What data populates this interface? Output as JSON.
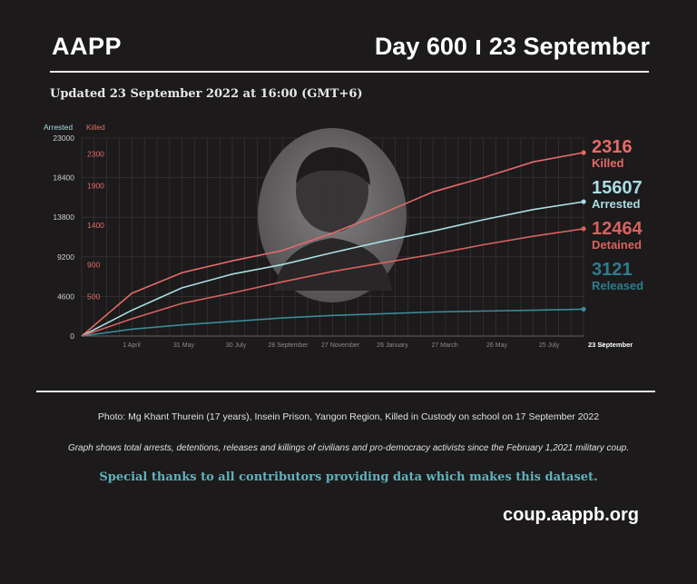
{
  "header": {
    "org": "AAPP",
    "day": "Day 600",
    "date": "23 September"
  },
  "updated": "Updated 23 September 2022 at 16:00 (GMT+6)",
  "photo_caption": "Photo: Mg Khant Thurein (17 years), Insein Prison, Yangon Region, Killed in Custody on school on 17 September 2022",
  "note": "Graph shows total arrests, detentions, releases and killings of civilians and pro-democracy activists since the February 1,2021 military coup.",
  "thanks": "Special thanks to all contributors providing data which makes this dataset.",
  "website": "coup.aappb.org",
  "colors": {
    "killed": "#e56b67",
    "arrested": "#a9dde4",
    "detained": "#d9625e",
    "released": "#3d8a99"
  },
  "chart_data": {
    "type": "line",
    "x_label_end": "23 September",
    "x_ticks": [
      "1 April",
      "31 May",
      "30 July",
      "28 September",
      "27 November",
      "26 January",
      "27 March",
      "26 May",
      "25 July",
      "23"
    ],
    "left_axis": {
      "label": "Arrested",
      "ticks": [
        0,
        4600,
        9200,
        13800,
        18400,
        23000
      ],
      "ylim": [
        0,
        23000
      ]
    },
    "right_axis": {
      "label": "Killed",
      "ticks": [
        500,
        900,
        1400,
        1900,
        2300
      ],
      "ylim": [
        0,
        2500
      ]
    },
    "x": [
      0,
      60,
      120,
      180,
      240,
      300,
      360,
      420,
      480,
      540,
      600
    ],
    "series": [
      {
        "name": "Killed",
        "axis": "right",
        "final": "2316",
        "label": "Killed",
        "values": [
          0,
          540,
          800,
          950,
          1080,
          1300,
          1550,
          1820,
          2000,
          2200,
          2316
        ]
      },
      {
        "name": "Arrested",
        "axis": "left",
        "final": "15607",
        "label": "Arrested",
        "values": [
          0,
          3000,
          5600,
          7200,
          8300,
          9700,
          11000,
          12200,
          13500,
          14700,
          15607
        ]
      },
      {
        "name": "Detained",
        "axis": "left",
        "final": "12464",
        "label": "Detained",
        "values": [
          0,
          2000,
          3800,
          5000,
          6300,
          7500,
          8500,
          9500,
          10600,
          11600,
          12464
        ]
      },
      {
        "name": "Released",
        "axis": "left",
        "final": "3121",
        "label": "Released",
        "values": [
          0,
          800,
          1300,
          1700,
          2100,
          2400,
          2600,
          2800,
          2900,
          3000,
          3121
        ]
      }
    ]
  }
}
